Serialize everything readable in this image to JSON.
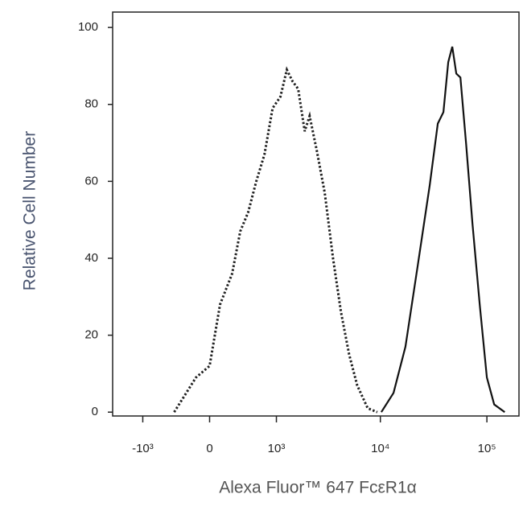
{
  "chart_data": {
    "type": "line",
    "xlabel": "Alexa Fluor™ 647 FcεR1α",
    "ylabel": "Relative Cell Number",
    "xscale": "biexponential",
    "xlim": [
      -2000,
      200000
    ],
    "xticks": [
      {
        "value": -1000,
        "label": "-10³"
      },
      0,
      {
        "value": 1000,
        "label": "10³"
      },
      {
        "value": 10000,
        "label": "10⁴"
      },
      {
        "value": 100000,
        "label": "10⁵"
      }
    ],
    "ylim": [
      -1,
      104
    ],
    "yticks": [
      0,
      20,
      40,
      60,
      80,
      100
    ],
    "series": [
      {
        "color": "#222222",
        "line_style": "dotted",
        "x": [
          -421,
          -293,
          -150,
          0,
          114,
          253,
          356,
          468,
          594,
          742,
          912,
          1100,
          1280,
          1460,
          1660,
          1920,
          2140,
          2510,
          2990,
          3580,
          4260,
          5080,
          6050,
          7600,
          9360
        ],
        "values": [
          0,
          4,
          9,
          12,
          28,
          36,
          47,
          52,
          60,
          67,
          79,
          82,
          89,
          86,
          84,
          73,
          77,
          68,
          57,
          40,
          26,
          15,
          7,
          1,
          0
        ]
      },
      {
        "color": "#111111",
        "line_style": "solid",
        "x": [
          10200,
          13300,
          17200,
          22400,
          29100,
          34600,
          39100,
          43400,
          47300,
          51600,
          56400,
          63700,
          73200,
          85600,
          100000,
          117000,
          147000
        ],
        "values": [
          0,
          5,
          17,
          38,
          59,
          75,
          78,
          91,
          95,
          88,
          87,
          70,
          49,
          28,
          9,
          2,
          0
        ]
      }
    ]
  }
}
